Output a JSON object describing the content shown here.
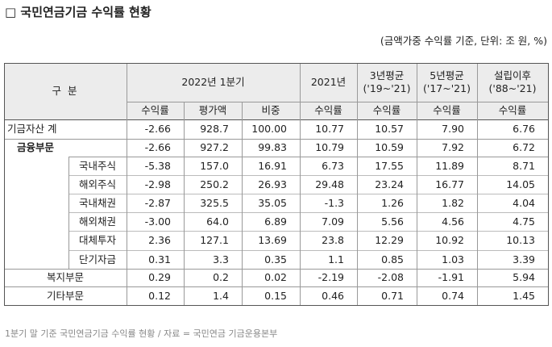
{
  "title": "□ 국민연금기금 수익률 현황",
  "unit_note": "(금액가중 수익률 기준, 단위: 조 원, %)",
  "table": {
    "corner": "구 분",
    "group_headers": [
      [
        "2022년 1분기"
      ],
      [
        "2021년"
      ],
      [
        "3년평균",
        "('19~'21)"
      ],
      [
        "5년평균",
        "('17~'21)"
      ],
      [
        "설립이후",
        "('88~'21)"
      ]
    ],
    "sub_headers": [
      "수익률",
      "평가액",
      "비중",
      "수익률",
      "수익률",
      "수익률",
      "수익률"
    ],
    "rows": [
      {
        "label": "기금자산 계",
        "cells": [
          "-2.66",
          "928.7",
          "100.00",
          "10.77",
          "10.57",
          "7.90",
          "6.76"
        ]
      },
      {
        "label": "금융부문",
        "cells": [
          "-2.66",
          "927.2",
          "99.83",
          "10.79",
          "10.59",
          "7.92",
          "6.72"
        ]
      },
      {
        "label": "국내주식",
        "cells": [
          "-5.38",
          "157.0",
          "16.91",
          "6.73",
          "17.55",
          "11.89",
          "8.71"
        ]
      },
      {
        "label": "해외주식",
        "cells": [
          "-2.98",
          "250.2",
          "26.93",
          "29.48",
          "23.24",
          "16.77",
          "14.05"
        ]
      },
      {
        "label": "국내채권",
        "cells": [
          "-2.87",
          "325.5",
          "35.05",
          "-1.3",
          "1.26",
          "1.82",
          "4.04"
        ]
      },
      {
        "label": "해외채권",
        "cells": [
          "-3.00",
          "64.0",
          "6.89",
          "7.09",
          "5.56",
          "4.56",
          "4.75"
        ]
      },
      {
        "label": "대체투자",
        "cells": [
          "2.36",
          "127.1",
          "13.69",
          "23.8",
          "12.29",
          "10.92",
          "10.13"
        ]
      },
      {
        "label": "단기자금",
        "cells": [
          "0.31",
          "3.3",
          "0.35",
          "1.1",
          "0.85",
          "1.03",
          "3.39"
        ]
      },
      {
        "label": "복지부문",
        "cells": [
          "0.29",
          "0.2",
          "0.02",
          "-2.19",
          "-2.08",
          "-1.91",
          "5.94"
        ]
      },
      {
        "label": "기타부문",
        "cells": [
          "0.12",
          "1.4",
          "0.15",
          "0.46",
          "0.71",
          "0.74",
          "1.45"
        ]
      }
    ]
  },
  "caption": "1분기 말 기준 국민연금기금 수익률 현황 / 자료 = 국민연금 기금운용본부"
}
